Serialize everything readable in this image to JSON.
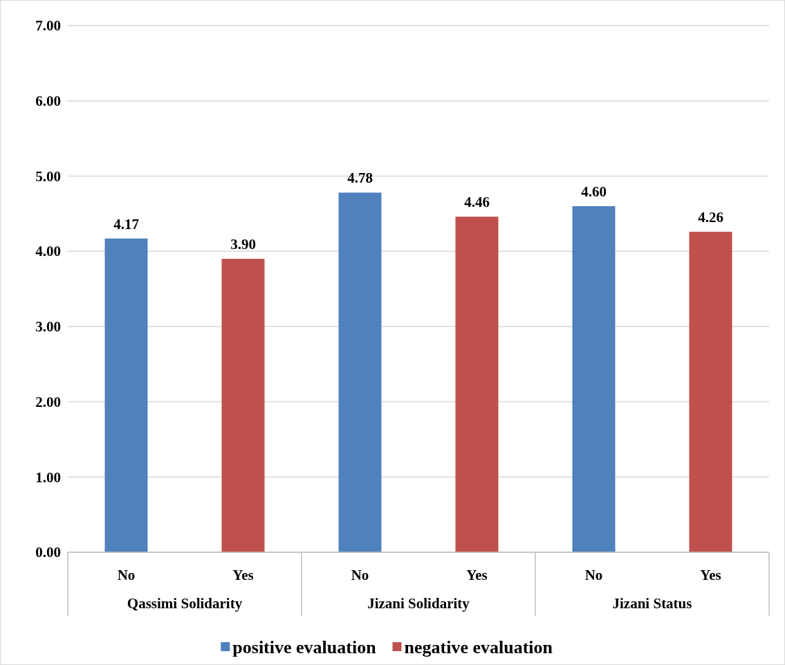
{
  "chart_data": {
    "type": "bar",
    "categories": [
      "No",
      "Yes",
      "No",
      "Yes",
      "No",
      "Yes"
    ],
    "series": [
      {
        "name": "positive evaluation",
        "color": "#4f81bd",
        "values": [
          4.17,
          null,
          4.78,
          null,
          4.6,
          null
        ],
        "value_labels": [
          "4.17",
          null,
          "4.78",
          null,
          "4.60",
          null
        ]
      },
      {
        "name": "negative evaluation",
        "color": "#c0504d",
        "values": [
          null,
          3.9,
          null,
          4.46,
          null,
          4.26
        ],
        "value_labels": [
          null,
          "3.90",
          null,
          "4.46",
          null,
          "4.26"
        ]
      }
    ],
    "ylim": [
      0,
      7
    ],
    "yticks": [
      {
        "value": 0,
        "label": "0.00"
      },
      {
        "value": 1,
        "label": "1.00"
      },
      {
        "value": 2,
        "label": "2.00"
      },
      {
        "value": 3,
        "label": "3.00"
      },
      {
        "value": 4,
        "label": "4.00"
      },
      {
        "value": 5,
        "label": "5.00"
      },
      {
        "value": 6,
        "label": "6.00"
      },
      {
        "value": 7,
        "label": "7.00"
      }
    ],
    "annotations": [
      "Qassimi Solidarity",
      "Jizani Solidarity",
      "Jizani Status"
    ],
    "grid": "y",
    "legend": "bottom"
  }
}
